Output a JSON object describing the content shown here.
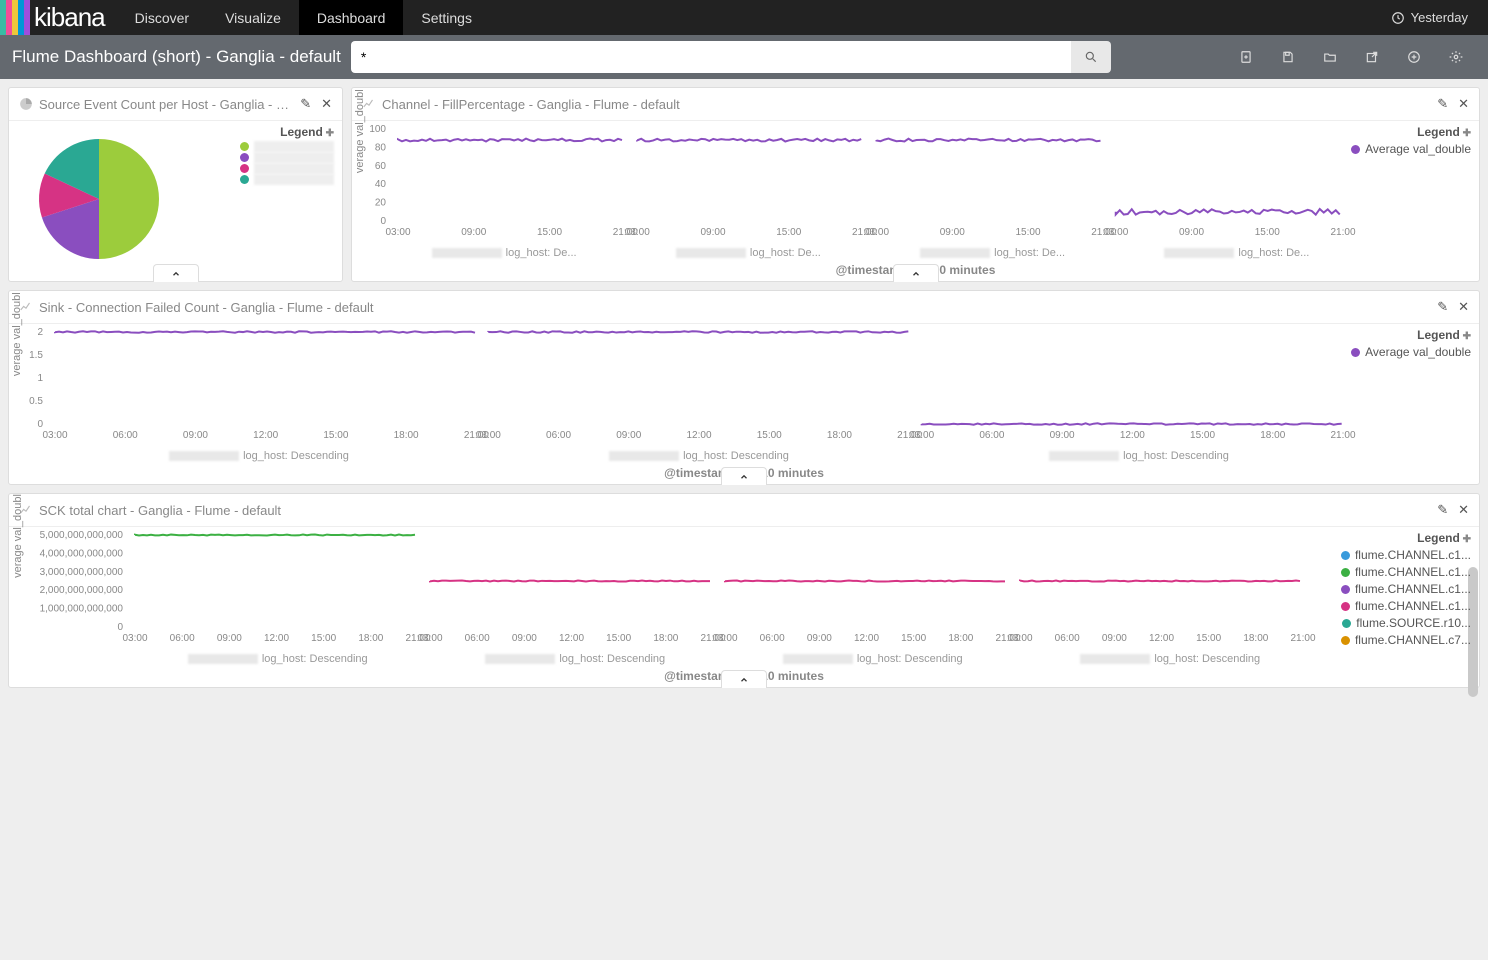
{
  "brand": {
    "bars": [
      "#38bca4",
      "#f04e98",
      "#eec73a",
      "#0096d6",
      "#9d4edd"
    ],
    "text": "kibana"
  },
  "nav": {
    "tabs": [
      "Discover",
      "Visualize",
      "Dashboard",
      "Settings"
    ],
    "active": "Dashboard",
    "timefilter": "Yesterday"
  },
  "subbar": {
    "title": "Flume Dashboard (short) - Ganglia - default",
    "query": "*"
  },
  "legend_label": "Legend",
  "panel_pie": {
    "title": "Source Event Count per Host - Ganglia - Fl...",
    "type": "pie",
    "slices": [
      {
        "color": "#9ccc3c",
        "value": 50
      },
      {
        "color": "#8a4ebf",
        "value": 20
      },
      {
        "color": "#d63384",
        "value": 12
      },
      {
        "color": "#2aa893",
        "value": 18
      }
    ]
  },
  "panel_fill": {
    "title": "Channel - FillPercentage - Ganglia - Flume - default",
    "type": "line-facets",
    "ylabel": "verage val_doubl",
    "xlabel": "@timestamp per 10 minutes",
    "ylim": [
      0,
      100
    ],
    "yticks": [
      0,
      20,
      40,
      60,
      80,
      100
    ],
    "xticks": [
      "03:00",
      "09:00",
      "15:00",
      "21:00"
    ],
    "facets_count": 4,
    "series": [
      {
        "name": "Average val_double",
        "color": "#8a4ebf"
      }
    ],
    "facet_values": [
      88,
      88,
      88,
      10
    ],
    "facet_label": "log_host: De..."
  },
  "panel_sink": {
    "title": "Sink - Connection Failed Count - Ganglia - Flume - default",
    "type": "line-facets",
    "ylabel": "verage val_doubl",
    "xlabel": "@timestamp per 10 minutes",
    "ylim": [
      0,
      2
    ],
    "yticks": [
      0,
      0.5,
      1,
      1.5,
      2
    ],
    "xticks": [
      "03:00",
      "06:00",
      "09:00",
      "12:00",
      "15:00",
      "18:00",
      "21:00"
    ],
    "facets_count": 3,
    "series": [
      {
        "name": "Average val_double",
        "color": "#8a4ebf"
      }
    ],
    "facet_values": [
      2,
      2,
      0
    ],
    "facet_label": "log_host: Descending"
  },
  "panel_sck": {
    "title": "SCK total chart - Ganglia - Flume - default",
    "type": "line-facets",
    "ylabel": "verage val_doubl",
    "xlabel": "@timestamp per 10 minutes",
    "ylim": [
      0,
      5000000000000
    ],
    "yticks_labels": [
      "0",
      "1,000,000,000,000",
      "2,000,000,000,000",
      "3,000,000,000,000",
      "4,000,000,000,000",
      "5,000,000,000,000"
    ],
    "xticks": [
      "03:00",
      "06:00",
      "09:00",
      "12:00",
      "15:00",
      "18:00",
      "21:00"
    ],
    "facets_count": 4,
    "facet_label": "log_host: Descending",
    "facet_lines": [
      {
        "color": "#3cb043",
        "y_ratio": 1.0
      },
      {
        "color": "#d63384",
        "y_ratio": 0.5
      },
      {
        "color": "#d63384",
        "y_ratio": 0.5
      },
      {
        "color": "#d63384",
        "y_ratio": 0.5
      }
    ],
    "legend_items": [
      {
        "color": "#3a9bdc",
        "label": "flume.CHANNEL.c1..."
      },
      {
        "color": "#3cb043",
        "label": "flume.CHANNEL.c1..."
      },
      {
        "color": "#8a4ebf",
        "label": "flume.CHANNEL.c1..."
      },
      {
        "color": "#d63384",
        "label": "flume.CHANNEL.c1..."
      },
      {
        "color": "#2aa893",
        "label": "flume.SOURCE.r10..."
      },
      {
        "color": "#d99100",
        "label": "flume.CHANNEL.c7..."
      }
    ]
  }
}
